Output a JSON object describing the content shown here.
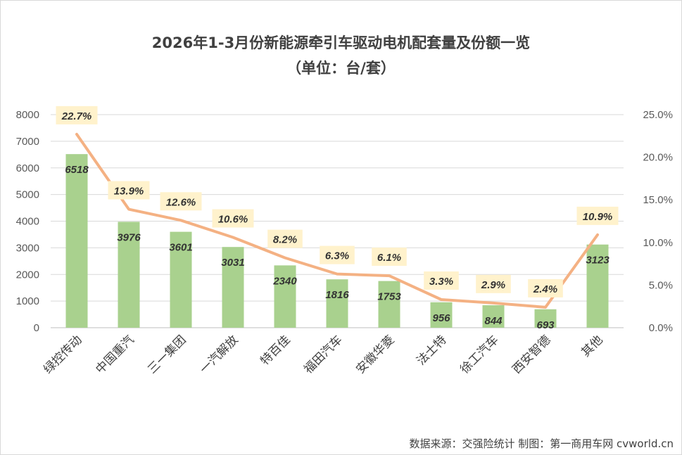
{
  "chart_data": {
    "type": "bar",
    "title": "2026年1-3月份新能源牵引车驱动电机配套量及份额一览",
    "subtitle": "（单位：台/套）",
    "categories": [
      "绿控传动",
      "中国重汽",
      "三一集团",
      "一汽解放",
      "特百佳",
      "福田汽车",
      "安徽华菱",
      "法士特",
      "徐工汽车",
      "西安智德",
      "其他"
    ],
    "series": [
      {
        "type": "bar",
        "values": [
          6518,
          3976,
          3601,
          3031,
          2340,
          1816,
          1753,
          956,
          844,
          693,
          3123
        ],
        "labels": [
          "6518",
          "3976",
          "3601",
          "3031",
          "2340",
          "1816",
          "1753",
          "956",
          "844",
          "693",
          "3123"
        ],
        "color": "#a9d18e",
        "axis": "left"
      },
      {
        "type": "line",
        "values": [
          22.7,
          13.9,
          12.6,
          10.6,
          8.2,
          6.3,
          6.1,
          3.3,
          2.9,
          2.4,
          10.9
        ],
        "labels": [
          "22.7%",
          "13.9%",
          "12.6%",
          "10.6%",
          "8.2%",
          "6.3%",
          "6.1%",
          "3.3%",
          "2.9%",
          "2.4%",
          "10.9%"
        ],
        "color": "#f4b183",
        "axis": "right"
      }
    ],
    "y_left": {
      "min": 0,
      "max": 8000,
      "ticks": [
        "0",
        "1000",
        "2000",
        "3000",
        "4000",
        "5000",
        "6000",
        "7000",
        "8000"
      ]
    },
    "y_right": {
      "min": 0,
      "max": 25,
      "ticks": [
        "0.0%",
        "5.0%",
        "10.0%",
        "15.0%",
        "20.0%",
        "25.0%"
      ]
    },
    "grid": true,
    "legend": "none",
    "label_bg_color": "#fff2cc",
    "axis_color": "#bfbfbf"
  },
  "source": "数据来源：交强险统计  制图：第一商用车网 cvworld.cn"
}
